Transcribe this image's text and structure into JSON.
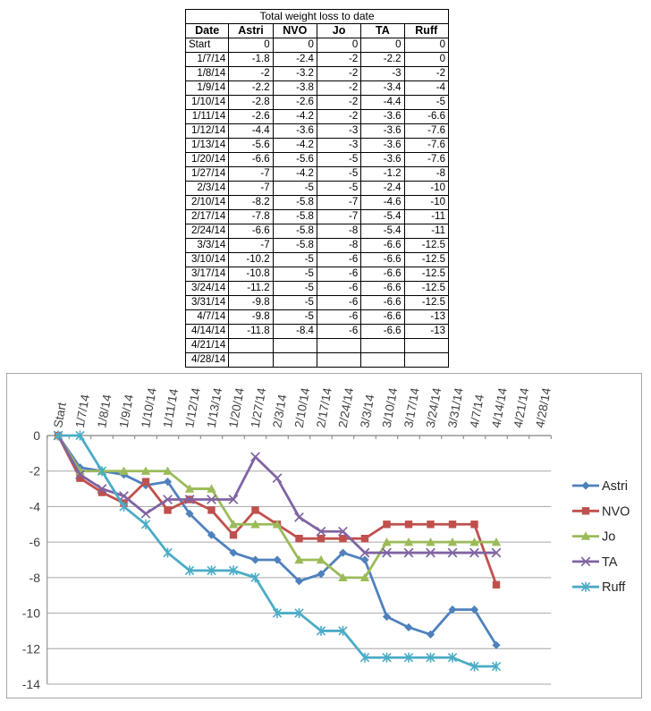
{
  "table": {
    "title": "Total weight loss to date",
    "columns": [
      "Date",
      "Astri",
      "NVO",
      "Jo",
      "TA",
      "Ruff"
    ],
    "rows": [
      [
        "Start",
        "0",
        "0",
        "0",
        "0",
        "0"
      ],
      [
        "1/7/14",
        "-1.8",
        "-2.4",
        "-2",
        "-2.2",
        "0"
      ],
      [
        "1/8/14",
        "-2",
        "-3.2",
        "-2",
        "-3",
        "-2"
      ],
      [
        "1/9/14",
        "-2.2",
        "-3.8",
        "-2",
        "-3.4",
        "-4"
      ],
      [
        "1/10/14",
        "-2.8",
        "-2.6",
        "-2",
        "-4.4",
        "-5"
      ],
      [
        "1/11/14",
        "-2.6",
        "-4.2",
        "-2",
        "-3.6",
        "-6.6"
      ],
      [
        "1/12/14",
        "-4.4",
        "-3.6",
        "-3",
        "-3.6",
        "-7.6"
      ],
      [
        "1/13/14",
        "-5.6",
        "-4.2",
        "-3",
        "-3.6",
        "-7.6"
      ],
      [
        "1/20/14",
        "-6.6",
        "-5.6",
        "-5",
        "-3.6",
        "-7.6"
      ],
      [
        "1/27/14",
        "-7",
        "-4.2",
        "-5",
        "-1.2",
        "-8"
      ],
      [
        "2/3/14",
        "-7",
        "-5",
        "-5",
        "-2.4",
        "-10"
      ],
      [
        "2/10/14",
        "-8.2",
        "-5.8",
        "-7",
        "-4.6",
        "-10"
      ],
      [
        "2/17/14",
        "-7.8",
        "-5.8",
        "-7",
        "-5.4",
        "-11"
      ],
      [
        "2/24/14",
        "-6.6",
        "-5.8",
        "-8",
        "-5.4",
        "-11"
      ],
      [
        "3/3/14",
        "-7",
        "-5.8",
        "-8",
        "-6.6",
        "-12.5"
      ],
      [
        "3/10/14",
        "-10.2",
        "-5",
        "-6",
        "-6.6",
        "-12.5"
      ],
      [
        "3/17/14",
        "-10.8",
        "-5",
        "-6",
        "-6.6",
        "-12.5"
      ],
      [
        "3/24/14",
        "-11.2",
        "-5",
        "-6",
        "-6.6",
        "-12.5"
      ],
      [
        "3/31/14",
        "-9.8",
        "-5",
        "-6",
        "-6.6",
        "-12.5"
      ],
      [
        "4/7/14",
        "-9.8",
        "-5",
        "-6",
        "-6.6",
        "-13"
      ],
      [
        "4/14/14",
        "-11.8",
        "-8.4",
        "-6",
        "-6.6",
        "-13"
      ],
      [
        "4/21/14",
        "",
        "",
        "",
        "",
        ""
      ],
      [
        "4/28/14",
        "",
        "",
        "",
        "",
        ""
      ]
    ]
  },
  "chart_data": {
    "type": "line",
    "categories": [
      "Start",
      "1/7/14",
      "1/8/14",
      "1/9/14",
      "1/10/14",
      "1/11/14",
      "1/12/14",
      "1/13/14",
      "1/20/14",
      "1/27/14",
      "2/3/14",
      "2/10/14",
      "2/17/14",
      "2/24/14",
      "3/3/14",
      "3/10/14",
      "3/17/14",
      "3/24/14",
      "3/31/14",
      "4/7/14",
      "4/14/14",
      "4/21/14",
      "4/28/14"
    ],
    "series": [
      {
        "name": "Astri",
        "color": "#4F81BD",
        "marker": "diamond",
        "values": [
          0,
          -1.8,
          -2,
          -2.2,
          -2.8,
          -2.6,
          -4.4,
          -5.6,
          -6.6,
          -7,
          -7,
          -8.2,
          -7.8,
          -6.6,
          -7,
          -10.2,
          -10.8,
          -11.2,
          -9.8,
          -9.8,
          -11.8,
          null,
          null
        ]
      },
      {
        "name": "NVO",
        "color": "#C0504D",
        "marker": "square",
        "values": [
          0,
          -2.4,
          -3.2,
          -3.8,
          -2.6,
          -4.2,
          -3.6,
          -4.2,
          -5.6,
          -4.2,
          -5,
          -5.8,
          -5.8,
          -5.8,
          -5.8,
          -5,
          -5,
          -5,
          -5,
          -5,
          -8.4,
          null,
          null
        ]
      },
      {
        "name": "Jo",
        "color": "#9BBB59",
        "marker": "triangle",
        "values": [
          0,
          -2,
          -2,
          -2,
          -2,
          -2,
          -3,
          -3,
          -5,
          -5,
          -5,
          -7,
          -7,
          -8,
          -8,
          -6,
          -6,
          -6,
          -6,
          -6,
          -6,
          null,
          null
        ]
      },
      {
        "name": "TA",
        "color": "#8064A2",
        "marker": "x",
        "values": [
          0,
          -2.2,
          -3,
          -3.4,
          -4.4,
          -3.6,
          -3.6,
          -3.6,
          -3.6,
          -1.2,
          -2.4,
          -4.6,
          -5.4,
          -5.4,
          -6.6,
          -6.6,
          -6.6,
          -6.6,
          -6.6,
          -6.6,
          -6.6,
          null,
          null
        ]
      },
      {
        "name": "Ruff",
        "color": "#4BACC6",
        "marker": "asterisk",
        "values": [
          0,
          0,
          -2,
          -4,
          -5,
          -6.6,
          -7.6,
          -7.6,
          -7.6,
          -8,
          -10,
          -10,
          -11,
          -11,
          -12.5,
          -12.5,
          -12.5,
          -12.5,
          -12.5,
          -13,
          -13,
          null,
          null
        ]
      }
    ],
    "yticks": [
      0,
      -2,
      -4,
      -6,
      -8,
      -10,
      -12,
      -14
    ],
    "ylim": [
      -14,
      0
    ],
    "grid": true,
    "legend_position": "right",
    "colors": {
      "gridline": "#a6a6a6",
      "axis": "#808080",
      "axis_text": "#3f3f3f",
      "legend_text": "#262626",
      "chart_border": "#a6a6a6"
    }
  }
}
